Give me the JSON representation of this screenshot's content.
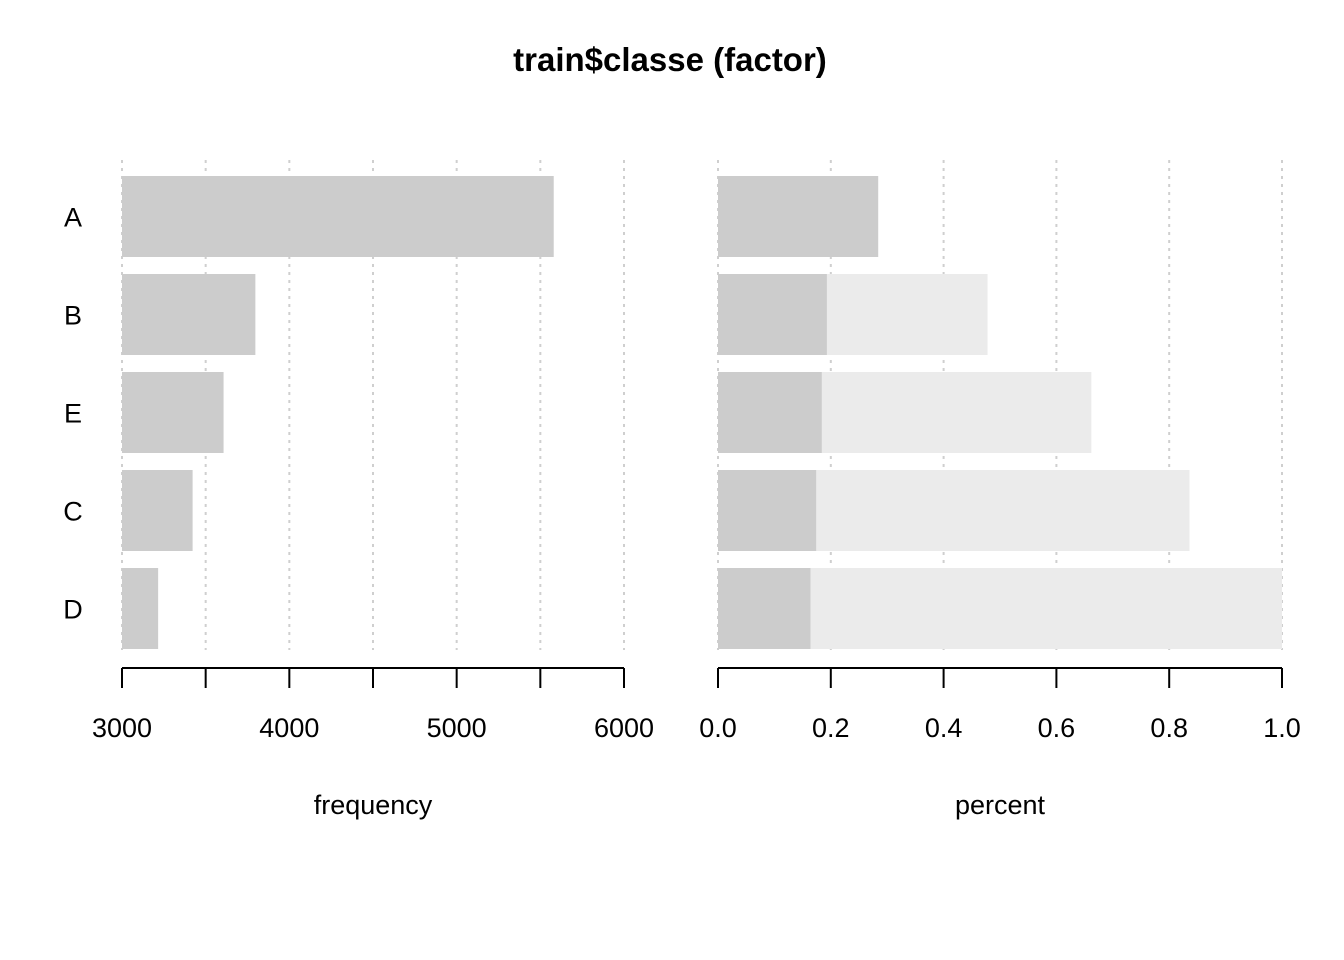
{
  "chart_data": {
    "type": "bar",
    "title": "train$classe (factor)",
    "categories": [
      "A",
      "B",
      "E",
      "C",
      "D"
    ],
    "panels": [
      {
        "type": "bar",
        "xlabel": "frequency",
        "xlim": [
          3000,
          6000
        ],
        "ticks": [
          3000,
          3500,
          4000,
          4500,
          5000,
          5500,
          6000
        ],
        "tick_labels": [
          "3000",
          "",
          "4000",
          "",
          "5000",
          "",
          "6000"
        ],
        "grid": true,
        "series": [
          {
            "values": [
              5580,
              3797,
              3607,
              3422,
              3216
            ]
          }
        ]
      },
      {
        "type": "stacked-bar",
        "xlabel": "percent",
        "xlim": [
          0.0,
          1.0
        ],
        "ticks": [
          0.0,
          0.2,
          0.4,
          0.6,
          0.8,
          1.0
        ],
        "tick_labels": [
          "0.0",
          "0.2",
          "0.4",
          "0.6",
          "0.8",
          "1.0"
        ],
        "grid": true,
        "series": [
          {
            "values": [
              0.284,
              0.193,
              0.184,
              0.174,
              0.164
            ]
          },
          {
            "values": [
              0.284,
              0.478,
              0.662,
              0.836,
              1.0
            ]
          }
        ]
      }
    ],
    "colors": {
      "bar": "#cccccc",
      "cumulative": "#ebebeb",
      "grid": "#cfcfcf",
      "axis": "#000000"
    }
  }
}
